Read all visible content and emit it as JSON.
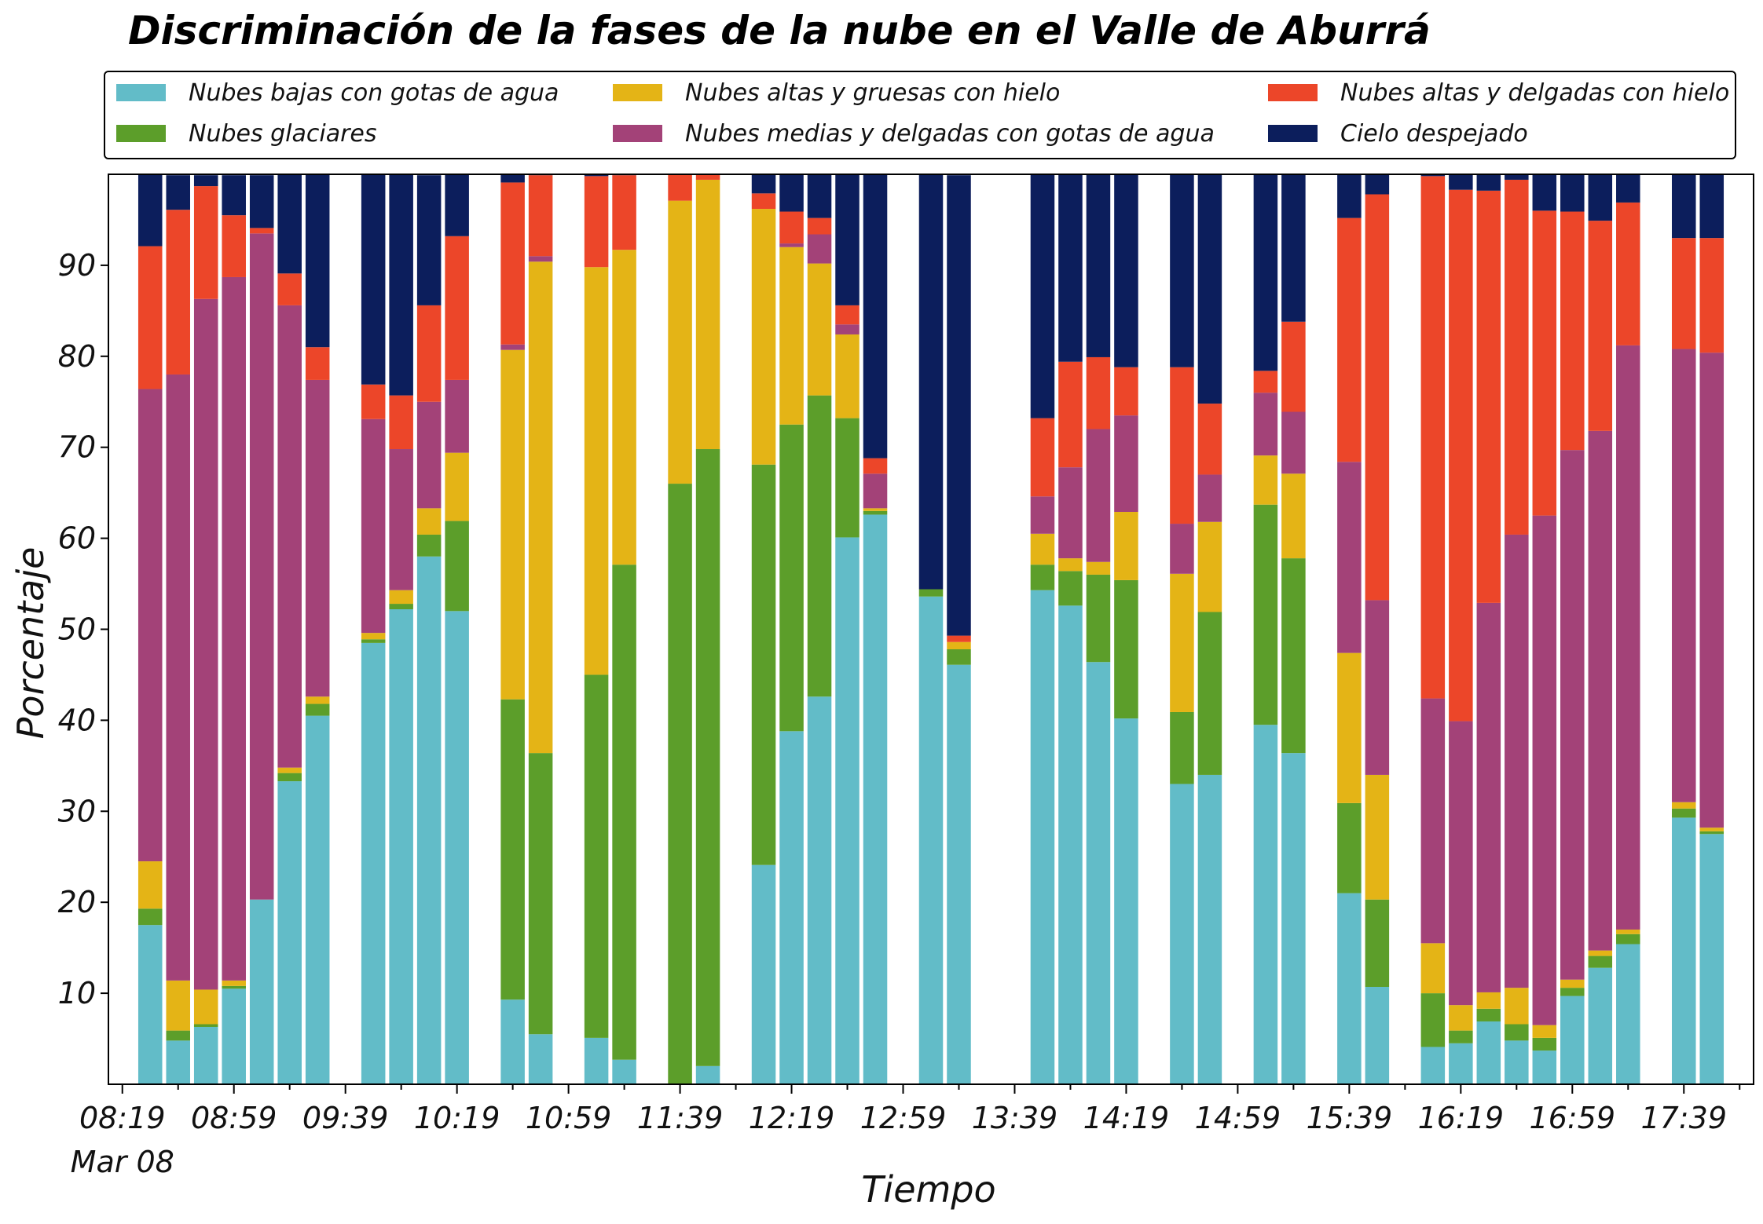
{
  "chart_data": {
    "type": "bar",
    "stacked": true,
    "title": "Discriminación de la fases de la nube en el Valle de Aburrá",
    "xlabel": "Tiempo",
    "ylabel": "Porcentaje",
    "ylim": [
      0,
      100
    ],
    "yticks": [
      10,
      20,
      30,
      40,
      50,
      60,
      70,
      80,
      90
    ],
    "x_start": "08:19",
    "x_end": "17:59",
    "bar_interval_minutes": 10,
    "xtick_labels": [
      "08:19",
      "08:59",
      "09:39",
      "10:19",
      "10:59",
      "11:39",
      "12:19",
      "12:59",
      "13:39",
      "14:19",
      "14:59",
      "15:39",
      "16:19",
      "16:59",
      "17:39"
    ],
    "xtick_sublabel": "Mar 08",
    "grid": false,
    "legend_position": "top",
    "legend_columns": 3,
    "x": [
      "08:29",
      "08:39",
      "08:49",
      "08:59",
      "09:09",
      "09:19",
      "09:29",
      "09:49",
      "09:59",
      "10:09",
      "10:19",
      "10:39",
      "10:49",
      "11:09",
      "11:19",
      "11:39",
      "11:49",
      "12:09",
      "12:19",
      "12:29",
      "12:39",
      "12:49",
      "13:09",
      "13:19",
      "13:49",
      "13:59",
      "14:09",
      "14:19",
      "14:39",
      "14:49",
      "15:09",
      "15:19",
      "15:39",
      "15:49",
      "16:09",
      "16:19",
      "16:29",
      "16:39",
      "16:49",
      "16:59",
      "17:09",
      "17:19",
      "17:39",
      "17:49"
    ],
    "series": [
      {
        "name": "Nubes bajas con gotas de agua",
        "color": "#62BCC8",
        "values": [
          17.5,
          4.8,
          6.3,
          10.5,
          20.3,
          33.3,
          40.5,
          48.5,
          52.2,
          58.0,
          52.0,
          9.3,
          5.5,
          5.1,
          2.7,
          0,
          2.0,
          24.1,
          38.8,
          42.6,
          60.1,
          62.6,
          53.6,
          46.1,
          54.3,
          52.6,
          46.4,
          40.2,
          33.0,
          34.0,
          39.5,
          36.4,
          21.0,
          10.7,
          4.1,
          4.5,
          6.9,
          4.8,
          3.7,
          9.7,
          12.8,
          15.4,
          29.3,
          27.5
        ]
      },
      {
        "name": "Nubes glaciares",
        "color": "#5C9E2A",
        "values": [
          1.8,
          1.1,
          0.3,
          0.3,
          0,
          0.9,
          1.3,
          0.4,
          0.6,
          2.4,
          9.9,
          33.0,
          30.9,
          39.9,
          54.4,
          66.0,
          67.8,
          44.0,
          33.7,
          33.1,
          13.1,
          0.4,
          0.8,
          1.7,
          2.8,
          3.8,
          9.6,
          15.2,
          7.9,
          17.9,
          24.2,
          21.4,
          9.9,
          9.6,
          5.9,
          1.4,
          1.4,
          1.8,
          1.4,
          0.9,
          1.3,
          1.1,
          1.0,
          0.3
        ]
      },
      {
        "name": "Nubes altas y gruesas con hielo",
        "color": "#E4B416",
        "values": [
          5.2,
          5.5,
          3.8,
          0.6,
          0,
          0.6,
          0.8,
          0.7,
          1.5,
          2.9,
          7.5,
          38.4,
          54.0,
          44.8,
          34.6,
          31.1,
          29.6,
          28.1,
          19.5,
          14.5,
          9.2,
          0.3,
          0,
          0.8,
          3.4,
          1.4,
          1.4,
          7.5,
          15.2,
          9.9,
          5.4,
          9.3,
          16.5,
          13.7,
          5.5,
          2.8,
          1.8,
          4.0,
          1.4,
          0.9,
          0.6,
          0.5,
          0.7,
          0.4
        ]
      },
      {
        "name": "Nubes medias y delgadas con gotas de agua",
        "color": "#A34278",
        "values": [
          51.9,
          66.6,
          75.9,
          77.3,
          73.2,
          50.8,
          34.8,
          23.5,
          15.5,
          11.7,
          8.0,
          0.6,
          0.6,
          0,
          0,
          0,
          0,
          0,
          0.4,
          3.2,
          1.1,
          3.8,
          0,
          0,
          4.1,
          10.0,
          14.6,
          10.6,
          5.5,
          5.2,
          6.9,
          6.8,
          21.0,
          19.2,
          26.9,
          31.2,
          42.8,
          49.8,
          56.0,
          58.2,
          57.1,
          64.2,
          49.8,
          52.2
        ]
      },
      {
        "name": "Nubes altas y delgadas con hielo",
        "color": "#EC4629",
        "values": [
          15.7,
          18.1,
          12.4,
          6.8,
          0.6,
          3.5,
          3.6,
          3.8,
          5.9,
          10.6,
          15.8,
          17.8,
          8.9,
          10.0,
          8.2,
          3.0,
          0.8,
          1.7,
          3.5,
          1.8,
          2.1,
          1.7,
          0,
          0.7,
          8.6,
          11.6,
          7.9,
          5.3,
          17.2,
          7.8,
          2.4,
          9.9,
          26.8,
          44.6,
          57.4,
          58.4,
          45.3,
          39.0,
          33.5,
          26.2,
          23.1,
          15.7,
          12.2,
          12.6
        ]
      },
      {
        "name": "Cielo despejado",
        "color": "#0C1E5C",
        "values": [
          8.0,
          3.8,
          1.2,
          4.4,
          5.8,
          10.9,
          19.0,
          23.1,
          24.3,
          14.3,
          6.8,
          1.0,
          0.2,
          0.2,
          0.1,
          0,
          0,
          2.1,
          4.1,
          4.8,
          14.5,
          31.2,
          45.6,
          50.6,
          26.8,
          20.6,
          20.1,
          21.2,
          21.2,
          25.2,
          21.6,
          16.2,
          4.8,
          2.2,
          0.2,
          1.8,
          1.8,
          0.6,
          4.0,
          4.1,
          5.1,
          3.1,
          7.0,
          7.0
        ]
      }
    ]
  }
}
